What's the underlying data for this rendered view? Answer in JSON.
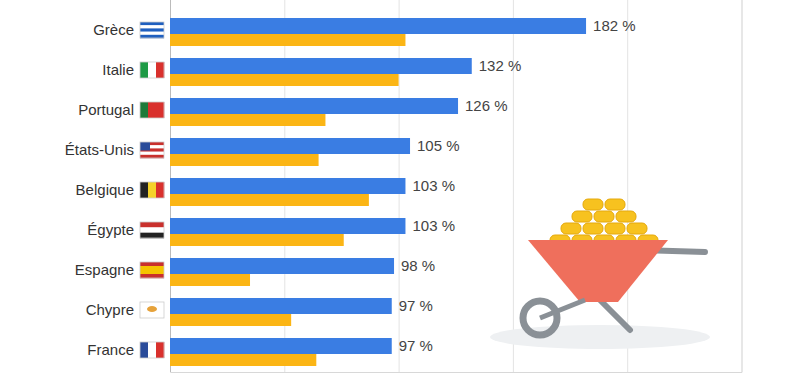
{
  "chart_data": {
    "type": "bar",
    "orientation": "horizontal",
    "categories": [
      "Grèce",
      "Italie",
      "Portugal",
      "États-Unis",
      "Belgique",
      "Égypte",
      "Espagne",
      "Chypre",
      "France"
    ],
    "series": [
      {
        "color": "#3a7de3",
        "values": [
          182,
          132,
          126,
          105,
          103,
          103,
          98,
          97,
          97
        ],
        "value_labels": [
          "182 %",
          "132 %",
          "126 %",
          "105 %",
          "103 %",
          "103 %",
          "98 %",
          "97 %",
          "97 %"
        ]
      },
      {
        "color": "#fbb515",
        "values": [
          103,
          100,
          68,
          65,
          87,
          76,
          35,
          53,
          64
        ]
      }
    ],
    "xlim": [
      0,
      250
    ],
    "xticks": [
      0,
      50,
      100,
      150,
      200,
      250
    ],
    "grid": true,
    "data_labels": true,
    "tick_labels": false
  }
}
